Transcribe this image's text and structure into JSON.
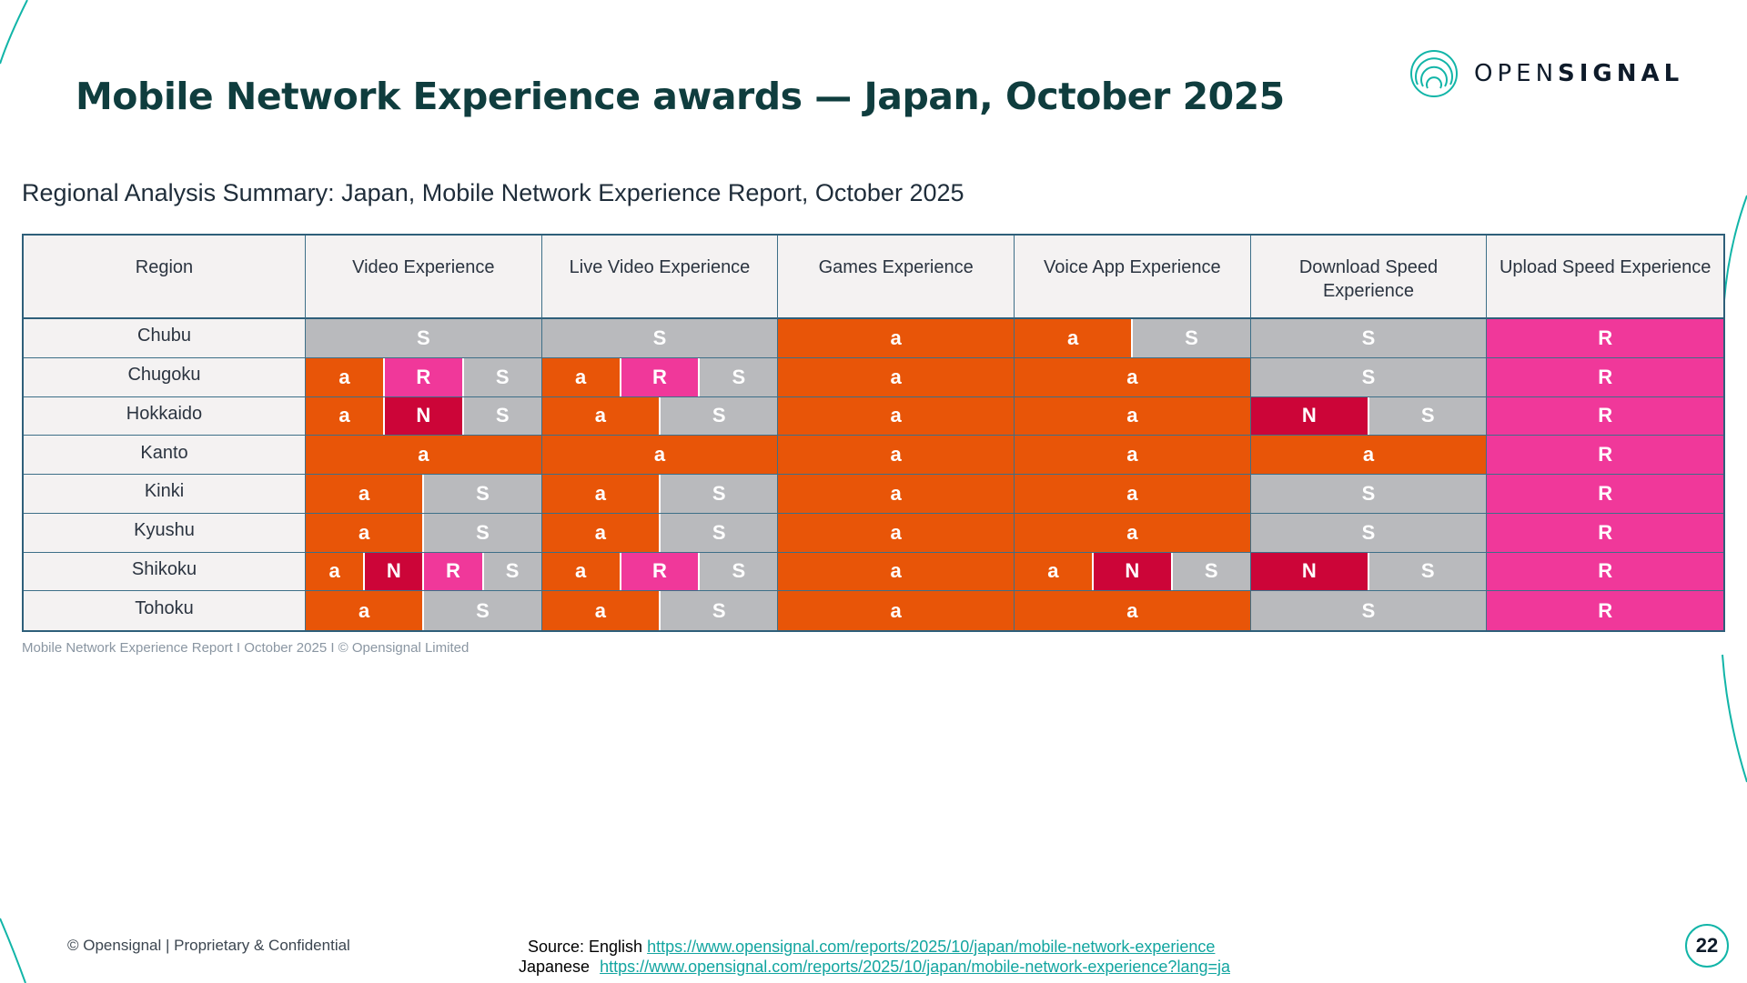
{
  "slide": {
    "title": "Mobile Network Experience awards — Japan, October 2025",
    "logo_text_light": "OPEN",
    "logo_text_bold": "SIGNAL",
    "subtitle": "Regional Analysis Summary: Japan, Mobile Network Experience Report, October 2025",
    "footnote": "Mobile Network Experience Report I October 2025 I © Opensignal Limited",
    "confidential": "© Opensignal  |  Proprietary & Confidential",
    "source_label": "Source: English",
    "source_en_url": "https://www.opensignal.com/reports/2025/10/japan/mobile-network-experience",
    "source_ja_label": "Japanese",
    "source_ja_url": "https://www.opensignal.com/reports/2025/10/japan/mobile-network-experience?lang=ja",
    "page_number": "22"
  },
  "colors": {
    "a": "#e85508",
    "S": "#b9babd",
    "R": "#f0389a",
    "N": "#cc0538",
    "title": "#0f3d3e",
    "accent": "#12b5a8"
  },
  "table": {
    "headers": [
      "Region",
      "Video Experience",
      "Live Video Experience",
      "Games Experience",
      "Voice App Experience",
      "Download Speed Experience",
      "Upload Speed Experience"
    ],
    "rows": [
      {
        "region": "Chubu",
        "cells": [
          [
            "S"
          ],
          [
            "S"
          ],
          [
            "a"
          ],
          [
            "a",
            "S"
          ],
          [
            "S"
          ],
          [
            "R"
          ]
        ]
      },
      {
        "region": "Chugoku",
        "cells": [
          [
            "a",
            "R",
            "S"
          ],
          [
            "a",
            "R",
            "S"
          ],
          [
            "a"
          ],
          [
            "a"
          ],
          [
            "S"
          ],
          [
            "R"
          ]
        ]
      },
      {
        "region": "Hokkaido",
        "cells": [
          [
            "a",
            "N",
            "S"
          ],
          [
            "a",
            "S"
          ],
          [
            "a"
          ],
          [
            "a"
          ],
          [
            "N",
            "S"
          ],
          [
            "R"
          ]
        ]
      },
      {
        "region": "Kanto",
        "cells": [
          [
            "a"
          ],
          [
            "a"
          ],
          [
            "a"
          ],
          [
            "a"
          ],
          [
            "a"
          ],
          [
            "R"
          ]
        ]
      },
      {
        "region": "Kinki",
        "cells": [
          [
            "a",
            "S"
          ],
          [
            "a",
            "S"
          ],
          [
            "a"
          ],
          [
            "a"
          ],
          [
            "S"
          ],
          [
            "R"
          ]
        ]
      },
      {
        "region": "Kyushu",
        "cells": [
          [
            "a",
            "S"
          ],
          [
            "a",
            "S"
          ],
          [
            "a"
          ],
          [
            "a"
          ],
          [
            "S"
          ],
          [
            "R"
          ]
        ]
      },
      {
        "region": "Shikoku",
        "cells": [
          [
            "a",
            "N",
            "R",
            "S"
          ],
          [
            "a",
            "R",
            "S"
          ],
          [
            "a"
          ],
          [
            "a",
            "N",
            "S"
          ],
          [
            "N",
            "S"
          ],
          [
            "R"
          ]
        ]
      },
      {
        "region": "Tohoku",
        "cells": [
          [
            "a",
            "S"
          ],
          [
            "a",
            "S"
          ],
          [
            "a"
          ],
          [
            "a"
          ],
          [
            "S"
          ],
          [
            "R"
          ]
        ]
      }
    ]
  }
}
